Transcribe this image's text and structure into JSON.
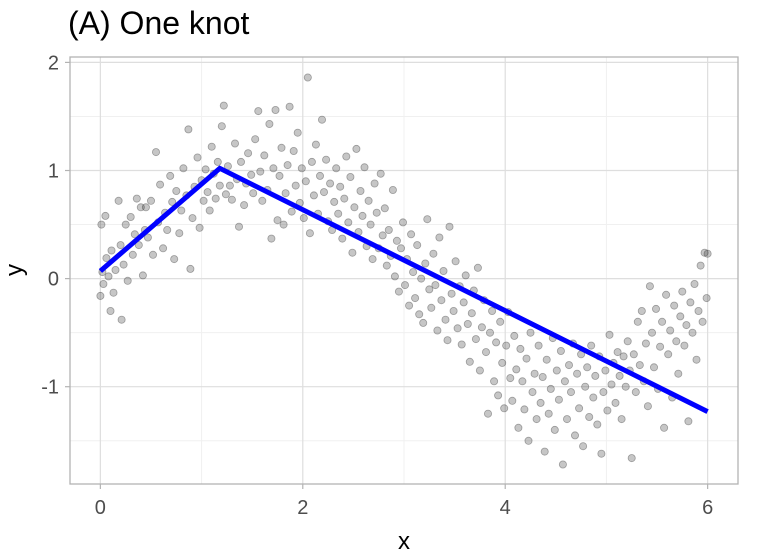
{
  "chart_data": {
    "type": "scatter",
    "title": "(A) One knot",
    "xlabel": "x",
    "ylabel": "y",
    "xlim": [
      -0.3,
      6.3
    ],
    "ylim": [
      -1.9,
      2.05
    ],
    "x_ticks": [
      {
        "value": 0,
        "label": "0"
      },
      {
        "value": 2,
        "label": "2"
      },
      {
        "value": 4,
        "label": "4"
      },
      {
        "value": 6,
        "label": "6"
      }
    ],
    "y_ticks": [
      {
        "value": -1,
        "label": "-1"
      },
      {
        "value": 0,
        "label": "0"
      },
      {
        "value": 1,
        "label": "1"
      },
      {
        "value": 2,
        "label": "2"
      }
    ],
    "grid": true,
    "point_color": "#333333",
    "fit_color": "#0000ff",
    "fit_line": {
      "x": [
        0.0,
        1.18,
        6.0
      ],
      "y": [
        0.07,
        1.02,
        -1.23
      ]
    },
    "points": [
      [
        0.0,
        -0.16
      ],
      [
        0.01,
        0.5
      ],
      [
        0.02,
        0.06
      ],
      [
        0.03,
        -0.05
      ],
      [
        0.05,
        0.58
      ],
      [
        0.06,
        0.19
      ],
      [
        0.08,
        0.02
      ],
      [
        0.1,
        -0.3
      ],
      [
        0.11,
        0.26
      ],
      [
        0.13,
        -0.13
      ],
      [
        0.15,
        0.08
      ],
      [
        0.18,
        0.72
      ],
      [
        0.2,
        0.31
      ],
      [
        0.21,
        -0.38
      ],
      [
        0.23,
        0.13
      ],
      [
        0.25,
        0.5
      ],
      [
        0.27,
        -0.02
      ],
      [
        0.3,
        0.57
      ],
      [
        0.32,
        0.22
      ],
      [
        0.34,
        0.41
      ],
      [
        0.36,
        0.74
      ],
      [
        0.38,
        0.31
      ],
      [
        0.4,
        0.66
      ],
      [
        0.42,
        0.03
      ],
      [
        0.44,
        0.45
      ],
      [
        0.45,
        0.66
      ],
      [
        0.47,
        0.38
      ],
      [
        0.5,
        0.72
      ],
      [
        0.52,
        0.22
      ],
      [
        0.55,
        1.17
      ],
      [
        0.57,
        0.52
      ],
      [
        0.59,
        0.87
      ],
      [
        0.62,
        0.28
      ],
      [
        0.64,
        0.61
      ],
      [
        0.66,
        0.45
      ],
      [
        0.69,
        0.95
      ],
      [
        0.71,
        0.71
      ],
      [
        0.73,
        0.18
      ],
      [
        0.75,
        0.81
      ],
      [
        0.78,
        0.42
      ],
      [
        0.8,
        0.63
      ],
      [
        0.82,
        1.02
      ],
      [
        0.85,
        0.77
      ],
      [
        0.87,
        1.38
      ],
      [
        0.89,
        0.09
      ],
      [
        0.91,
        0.56
      ],
      [
        0.93,
        0.85
      ],
      [
        0.96,
        1.12
      ],
      [
        0.98,
        0.47
      ],
      [
        1.0,
        0.91
      ],
      [
        1.02,
        0.72
      ],
      [
        1.04,
        1.01
      ],
      [
        1.06,
        0.8
      ],
      [
        1.08,
        0.63
      ],
      [
        1.1,
        1.22
      ],
      [
        1.12,
        0.97
      ],
      [
        1.14,
        0.74
      ],
      [
        1.16,
        1.08
      ],
      [
        1.18,
        0.86
      ],
      [
        1.2,
        1.41
      ],
      [
        1.22,
        1.6
      ],
      [
        1.24,
        0.78
      ],
      [
        1.26,
        1.04
      ],
      [
        1.28,
        0.86
      ],
      [
        1.3,
        0.73
      ],
      [
        1.33,
        1.25
      ],
      [
        1.35,
        0.92
      ],
      [
        1.37,
        0.48
      ],
      [
        1.39,
        1.08
      ],
      [
        1.42,
        0.68
      ],
      [
        1.44,
        0.88
      ],
      [
        1.46,
        1.16
      ],
      [
        1.49,
        0.96
      ],
      [
        1.51,
        0.79
      ],
      [
        1.53,
        1.29
      ],
      [
        1.56,
        1.55
      ],
      [
        1.58,
        0.99
      ],
      [
        1.6,
        0.72
      ],
      [
        1.62,
        1.14
      ],
      [
        1.65,
        0.82
      ],
      [
        1.67,
        1.43
      ],
      [
        1.69,
        0.37
      ],
      [
        1.71,
        1.02
      ],
      [
        1.73,
        1.56
      ],
      [
        1.75,
        0.54
      ],
      [
        1.77,
        0.95
      ],
      [
        1.79,
        1.21
      ],
      [
        1.81,
        0.5
      ],
      [
        1.83,
        0.79
      ],
      [
        1.85,
        1.05
      ],
      [
        1.87,
        1.59
      ],
      [
        1.89,
        0.62
      ],
      [
        1.91,
        1.18
      ],
      [
        1.93,
        0.86
      ],
      [
        1.95,
        1.35
      ],
      [
        1.97,
        0.7
      ],
      [
        1.99,
        1.02
      ],
      [
        2.01,
        0.56
      ],
      [
        2.03,
        0.9
      ],
      [
        2.05,
        1.86
      ],
      [
        2.07,
        0.42
      ],
      [
        2.09,
        1.08
      ],
      [
        2.11,
        0.77
      ],
      [
        2.13,
        1.24
      ],
      [
        2.15,
        0.6
      ],
      [
        2.17,
        0.95
      ],
      [
        2.19,
        1.47
      ],
      [
        2.21,
        0.8
      ],
      [
        2.23,
        1.1
      ],
      [
        2.25,
        0.53
      ],
      [
        2.27,
        0.88
      ],
      [
        2.29,
        0.45
      ],
      [
        2.31,
        0.71
      ],
      [
        2.33,
        1.02
      ],
      [
        2.35,
        0.6
      ],
      [
        2.37,
        0.85
      ],
      [
        2.39,
        0.37
      ],
      [
        2.41,
        0.74
      ],
      [
        2.43,
        1.13
      ],
      [
        2.45,
        0.52
      ],
      [
        2.47,
        0.94
      ],
      [
        2.49,
        0.24
      ],
      [
        2.51,
        0.66
      ],
      [
        2.53,
        1.2
      ],
      [
        2.55,
        0.43
      ],
      [
        2.57,
        0.81
      ],
      [
        2.59,
        0.58
      ],
      [
        2.61,
        1.03
      ],
      [
        2.63,
        0.3
      ],
      [
        2.65,
        0.72
      ],
      [
        2.67,
        0.5
      ],
      [
        2.69,
        0.18
      ],
      [
        2.71,
        0.88
      ],
      [
        2.73,
        0.61
      ],
      [
        2.75,
        0.28
      ],
      [
        2.77,
        0.97
      ],
      [
        2.79,
        0.4
      ],
      [
        2.81,
        0.65
      ],
      [
        2.83,
        0.12
      ],
      [
        2.85,
        0.45
      ],
      [
        2.87,
        0.21
      ],
      [
        2.89,
        0.82
      ],
      [
        2.91,
        0.02
      ],
      [
        2.93,
        0.35
      ],
      [
        2.95,
        -0.12
      ],
      [
        2.97,
        0.28
      ],
      [
        2.99,
        0.52
      ],
      [
        3.01,
        -0.06
      ],
      [
        3.03,
        0.18
      ],
      [
        3.05,
        -0.25
      ],
      [
        3.07,
        0.41
      ],
      [
        3.09,
        0.06
      ],
      [
        3.11,
        -0.18
      ],
      [
        3.13,
        0.31
      ],
      [
        3.15,
        -0.33
      ],
      [
        3.17,
        0.0
      ],
      [
        3.19,
        -0.41
      ],
      [
        3.21,
        0.14
      ],
      [
        3.23,
        0.55
      ],
      [
        3.25,
        -0.1
      ],
      [
        3.27,
        -0.27
      ],
      [
        3.29,
        0.23
      ],
      [
        3.31,
        -0.06
      ],
      [
        3.33,
        -0.48
      ],
      [
        3.35,
        0.38
      ],
      [
        3.37,
        -0.2
      ],
      [
        3.39,
        0.07
      ],
      [
        3.41,
        -0.38
      ],
      [
        3.43,
        -0.57
      ],
      [
        3.45,
        0.48
      ],
      [
        3.47,
        -0.14
      ],
      [
        3.49,
        -0.3
      ],
      [
        3.51,
        0.16
      ],
      [
        3.53,
        -0.46
      ],
      [
        3.55,
        -0.07
      ],
      [
        3.57,
        -0.61
      ],
      [
        3.59,
        -0.22
      ],
      [
        3.61,
        0.03
      ],
      [
        3.63,
        -0.42
      ],
      [
        3.65,
        -0.77
      ],
      [
        3.67,
        -0.32
      ],
      [
        3.69,
        -0.11
      ],
      [
        3.71,
        -0.56
      ],
      [
        3.73,
        0.1
      ],
      [
        3.75,
        -0.85
      ],
      [
        3.77,
        -0.45
      ],
      [
        3.79,
        -0.2
      ],
      [
        3.81,
        -0.68
      ],
      [
        3.83,
        -1.25
      ],
      [
        3.85,
        -0.5
      ],
      [
        3.87,
        -0.3
      ],
      [
        3.89,
        -0.95
      ],
      [
        3.91,
        -0.59
      ],
      [
        3.93,
        -1.08
      ],
      [
        3.95,
        -0.4
      ],
      [
        3.97,
        -0.78
      ],
      [
        3.99,
        -1.2
      ],
      [
        4.01,
        -0.62
      ],
      [
        4.03,
        -0.31
      ],
      [
        4.05,
        -0.92
      ],
      [
        4.07,
        -1.13
      ],
      [
        4.09,
        -0.53
      ],
      [
        4.11,
        -0.84
      ],
      [
        4.13,
        -1.38
      ],
      [
        4.15,
        -0.65
      ],
      [
        4.17,
        -0.95
      ],
      [
        4.19,
        -1.21
      ],
      [
        4.21,
        -0.74
      ],
      [
        4.23,
        -1.5
      ],
      [
        4.25,
        -0.5
      ],
      [
        4.27,
        -1.05
      ],
      [
        4.29,
        -0.88
      ],
      [
        4.31,
        -1.3
      ],
      [
        4.33,
        -0.62
      ],
      [
        4.35,
        -1.15
      ],
      [
        4.37,
        -0.91
      ],
      [
        4.39,
        -1.6
      ],
      [
        4.41,
        -0.75
      ],
      [
        4.43,
        -1.25
      ],
      [
        4.45,
        -1.02
      ],
      [
        4.47,
        -0.55
      ],
      [
        4.49,
        -1.4
      ],
      [
        4.51,
        -0.85
      ],
      [
        4.53,
        -1.12
      ],
      [
        4.55,
        -0.67
      ],
      [
        4.57,
        -1.72
      ],
      [
        4.59,
        -0.95
      ],
      [
        4.61,
        -1.3
      ],
      [
        4.63,
        -0.8
      ],
      [
        4.65,
        -1.05
      ],
      [
        4.67,
        -0.6
      ],
      [
        4.69,
        -1.45
      ],
      [
        4.71,
        -0.88
      ],
      [
        4.73,
        -1.2
      ],
      [
        4.75,
        -0.7
      ],
      [
        4.77,
        -1.55
      ],
      [
        4.79,
        -1.0
      ],
      [
        4.81,
        -0.82
      ],
      [
        4.83,
        -1.28
      ],
      [
        4.85,
        -0.62
      ],
      [
        4.87,
        -1.1
      ],
      [
        4.89,
        -0.9
      ],
      [
        4.91,
        -1.35
      ],
      [
        4.93,
        -0.72
      ],
      [
        4.95,
        -1.62
      ],
      [
        4.97,
        -1.05
      ],
      [
        4.99,
        -0.85
      ],
      [
        5.01,
        -1.22
      ],
      [
        5.03,
        -0.52
      ],
      [
        5.05,
        -0.98
      ],
      [
        5.07,
        -0.78
      ],
      [
        5.09,
        -1.15
      ],
      [
        5.11,
        -0.68
      ],
      [
        5.13,
        -0.9
      ],
      [
        5.15,
        -1.3
      ],
      [
        5.17,
        -0.72
      ],
      [
        5.19,
        -1.0
      ],
      [
        5.21,
        -0.58
      ],
      [
        5.23,
        -0.85
      ],
      [
        5.25,
        -1.66
      ],
      [
        5.27,
        -0.7
      ],
      [
        5.29,
        -1.05
      ],
      [
        5.31,
        -0.4
      ],
      [
        5.33,
        -0.8
      ],
      [
        5.35,
        -0.3
      ],
      [
        5.37,
        -0.95
      ],
      [
        5.39,
        -0.6
      ],
      [
        5.41,
        -1.18
      ],
      [
        5.43,
        -0.07
      ],
      [
        5.45,
        -0.5
      ],
      [
        5.47,
        -0.82
      ],
      [
        5.49,
        -0.28
      ],
      [
        5.51,
        -1.02
      ],
      [
        5.53,
        -0.63
      ],
      [
        5.55,
        -0.4
      ],
      [
        5.57,
        -1.38
      ],
      [
        5.59,
        -0.15
      ],
      [
        5.61,
        -0.7
      ],
      [
        5.63,
        -0.48
      ],
      [
        5.65,
        -1.1
      ],
      [
        5.67,
        -0.25
      ],
      [
        5.69,
        -0.58
      ],
      [
        5.71,
        -0.88
      ],
      [
        5.73,
        -0.35
      ],
      [
        5.75,
        -0.12
      ],
      [
        5.77,
        -0.62
      ],
      [
        5.79,
        -0.43
      ],
      [
        5.81,
        -1.32
      ],
      [
        5.83,
        -0.22
      ],
      [
        5.85,
        -0.5
      ],
      [
        5.87,
        -0.05
      ],
      [
        5.89,
        -0.75
      ],
      [
        5.91,
        -0.3
      ],
      [
        5.93,
        0.12
      ],
      [
        5.95,
        -0.4
      ],
      [
        5.97,
        0.24
      ],
      [
        5.99,
        -0.18
      ],
      [
        6.0,
        0.23
      ]
    ]
  }
}
